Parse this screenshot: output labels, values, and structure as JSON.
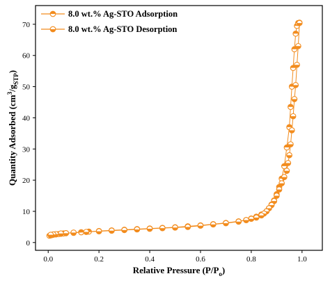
{
  "chart_data": {
    "type": "scatter",
    "xlabel": "Relative Pressure (P/P",
    "xlabel_sub": "o",
    "xlabel_close": ")",
    "ylabel": "Quantity Adsorbed (cm",
    "ylabel_sup": "3",
    "ylabel_mid": "/g",
    "ylabel_sub": "STP",
    "ylabel_close": ")",
    "xlim": [
      -0.05,
      1.08
    ],
    "ylim": [
      -2.5,
      76
    ],
    "x_ticks": [
      0.0,
      0.2,
      0.4,
      0.6,
      0.8,
      1.0
    ],
    "x_tick_labels": [
      "0.0",
      "0.2",
      "0.4",
      "0.6",
      "0.8",
      "1.0"
    ],
    "y_ticks": [
      0,
      10,
      20,
      30,
      40,
      50,
      60,
      70
    ],
    "y_tick_labels": [
      "0",
      "10",
      "20",
      "30",
      "40",
      "50",
      "60",
      "70"
    ],
    "legend_position": "top-left",
    "color": "#F28C1E",
    "series": [
      {
        "name": "8.0 wt.% Ag-STO Adsorption",
        "marker": "top-half-filled",
        "x": [
          0.005,
          0.01,
          0.015,
          0.02,
          0.03,
          0.04,
          0.05,
          0.06,
          0.07,
          0.1,
          0.13,
          0.16,
          0.2,
          0.25,
          0.3,
          0.35,
          0.4,
          0.45,
          0.5,
          0.55,
          0.6,
          0.65,
          0.7,
          0.75,
          0.78,
          0.8,
          0.82,
          0.84,
          0.86,
          0.87,
          0.88,
          0.89,
          0.9,
          0.91,
          0.92,
          0.93,
          0.94,
          0.95,
          0.955,
          0.96,
          0.965,
          0.97,
          0.975,
          0.98,
          0.985,
          0.99
        ],
        "y": [
          2.2,
          2.3,
          2.4,
          2.5,
          2.6,
          2.7,
          2.8,
          2.9,
          3.0,
          3.1,
          3.3,
          3.5,
          3.7,
          3.9,
          4.1,
          4.3,
          4.5,
          4.7,
          4.9,
          5.2,
          5.5,
          5.9,
          6.3,
          6.8,
          7.2,
          7.7,
          8.3,
          9.0,
          10.0,
          11.0,
          12.2,
          13.5,
          15.5,
          17.8,
          20.5,
          24.5,
          30.5,
          37.0,
          43.5,
          50.0,
          56.0,
          62.0,
          67.0,
          69.5,
          70.4,
          70.5
        ]
      },
      {
        "name": "8.0 wt.% Ag-STO Desorption",
        "marker": "bottom-half-filled",
        "x": [
          0.99,
          0.985,
          0.98,
          0.975,
          0.97,
          0.965,
          0.96,
          0.955,
          0.95,
          0.945,
          0.94,
          0.93,
          0.92,
          0.91,
          0.9,
          0.89,
          0.88,
          0.87,
          0.86,
          0.85,
          0.84,
          0.82,
          0.8,
          0.78,
          0.75,
          0.7,
          0.65,
          0.6,
          0.55,
          0.5,
          0.45,
          0.4,
          0.35,
          0.3,
          0.25,
          0.2,
          0.15,
          0.1,
          0.07,
          0.05,
          0.03,
          0.02,
          0.01
        ],
        "y": [
          70.4,
          63.0,
          57.0,
          50.5,
          46.0,
          40.5,
          36.0,
          31.5,
          28.0,
          25.5,
          23.0,
          21.0,
          19.0,
          17.0,
          15.0,
          13.3,
          12.0,
          11.0,
          10.0,
          9.3,
          8.7,
          8.0,
          7.6,
          7.2,
          6.7,
          6.2,
          5.8,
          5.4,
          5.0,
          4.8,
          4.6,
          4.4,
          4.2,
          4.0,
          3.8,
          3.6,
          3.4,
          3.2,
          3.0,
          2.9,
          2.7,
          2.6,
          2.5
        ]
      }
    ]
  }
}
